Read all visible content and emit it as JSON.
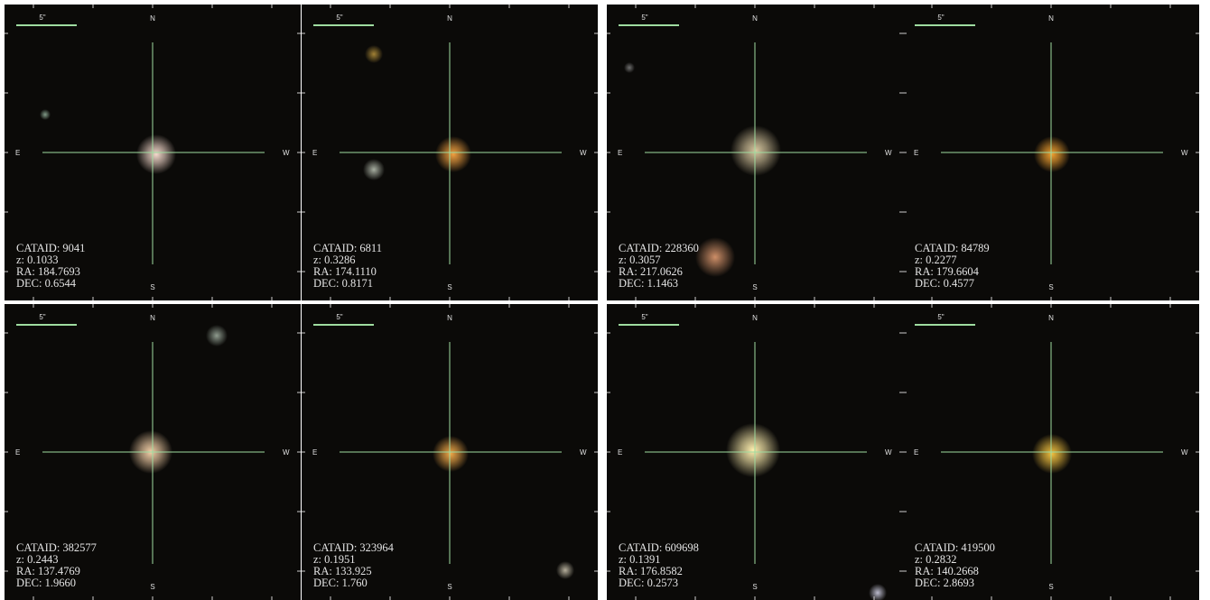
{
  "compass": {
    "scale": "5\"",
    "north": "N",
    "south": "S",
    "east": "E",
    "west": "W"
  },
  "panels": [
    {
      "lines": [
        "CATAID: 9041",
        "z: 0.1033",
        "RA: 184.7693",
        "DEC: 0.6544"
      ]
    },
    {
      "lines": [
        "CATAID: 6811",
        "z: 0.3286",
        "RA: 174.1110",
        "DEC: 0.8171"
      ]
    },
    {
      "lines": [
        "CATAID: 228360",
        "z: 0.3057",
        "RA: 217.0626",
        "DEC: 1.1463"
      ]
    },
    {
      "lines": [
        "CATAID: 84789",
        "z: 0.2277",
        "RA: 179.6604",
        "DEC: 0.4577"
      ]
    },
    {
      "lines": [
        "CATAID: 382577",
        "z: 0.2443",
        "RA: 137.4769",
        "DEC: 1.9660"
      ]
    },
    {
      "lines": [
        "CATAID: 323964",
        "z: 0.1951",
        "RA: 133.925",
        "DEC: 1.760"
      ]
    },
    {
      "lines": [
        "CATAID: 609698",
        "z: 0.1391",
        "RA: 176.8582",
        "DEC: 0.2573"
      ]
    },
    {
      "lines": [
        "CATAID: 419500",
        "z: 0.2832",
        "RA: 140.2668",
        "DEC: 2.8693"
      ]
    }
  ]
}
